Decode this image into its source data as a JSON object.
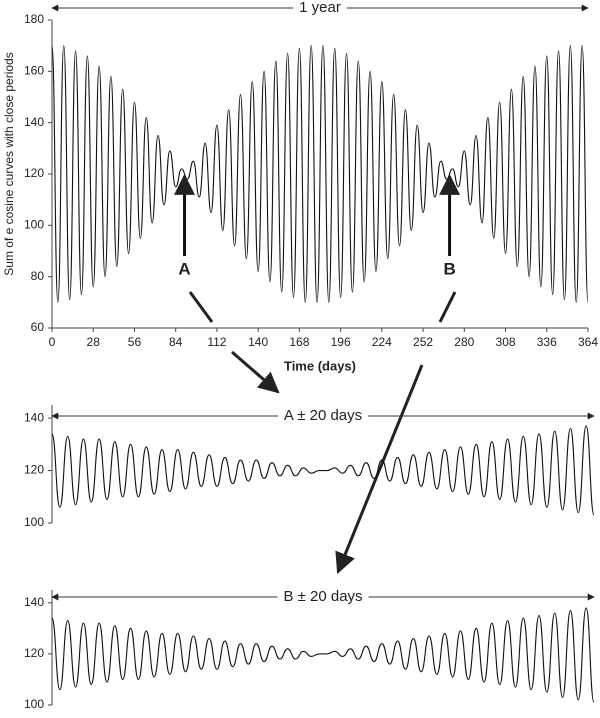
{
  "chart_data": [
    {
      "type": "line",
      "title": "1 year",
      "x_label": "Time (days)",
      "y_label": "Sum of e cosine curves with close periods",
      "color": "#111",
      "xlim": [
        0,
        364
      ],
      "xticks": [
        0,
        28,
        56,
        84,
        112,
        140,
        168,
        196,
        224,
        252,
        280,
        308,
        336,
        364
      ],
      "ylim": [
        60,
        180
      ],
      "yticks": [
        60,
        80,
        100,
        120,
        140,
        160,
        180
      ],
      "annotations": [
        {
          "text": "A",
          "x": 90,
          "y": 120
        },
        {
          "text": "B",
          "x": 270,
          "y": 120
        }
      ],
      "x": [
        0,
        4,
        8,
        12,
        16,
        20,
        24,
        28,
        32,
        36,
        40,
        44,
        48,
        52,
        56,
        60,
        64,
        68,
        72,
        76,
        80,
        84,
        88,
        92,
        96,
        100,
        104,
        108,
        112,
        116,
        120,
        124,
        128,
        132,
        136,
        140,
        144,
        148,
        152,
        156,
        160,
        164,
        168,
        172,
        176,
        180,
        184,
        188,
        192,
        196,
        200,
        204,
        208,
        212,
        216,
        220,
        224,
        228,
        232,
        236,
        240,
        244,
        248,
        252,
        256,
        260,
        264,
        268,
        272,
        276,
        280,
        284,
        288,
        292,
        296,
        300,
        304,
        308,
        312,
        316,
        320,
        324,
        328,
        332,
        336,
        340,
        344,
        348,
        352,
        356,
        360,
        364
      ],
      "values": [
        170,
        70,
        170,
        71,
        168,
        73,
        166,
        76,
        162,
        80,
        158,
        84,
        153,
        89,
        148,
        95,
        142,
        101,
        135,
        108,
        129,
        115,
        122,
        118,
        125,
        111,
        132,
        105,
        139,
        98,
        145,
        92,
        151,
        87,
        156,
        82,
        160,
        78,
        164,
        74,
        167,
        72,
        169,
        70,
        170,
        70,
        170,
        70,
        169,
        72,
        167,
        74,
        164,
        78,
        160,
        82,
        156,
        87,
        151,
        92,
        145,
        98,
        139,
        105,
        132,
        111,
        125,
        118,
        122,
        115,
        129,
        108,
        135,
        101,
        142,
        95,
        148,
        89,
        153,
        84,
        158,
        80,
        162,
        76,
        166,
        73,
        168,
        71,
        170,
        70,
        170,
        70
      ]
    },
    {
      "type": "line",
      "title": "A ± 20 days",
      "color": "#111",
      "ylim": [
        100,
        145
      ],
      "yticks": [
        100,
        120,
        140
      ],
      "values": [
        134,
        106,
        133,
        107,
        132,
        108,
        132,
        109,
        131,
        110,
        130,
        110,
        129,
        111,
        128,
        112,
        128,
        113,
        127,
        114,
        126,
        114,
        125,
        115,
        124,
        116,
        124,
        117,
        123,
        118,
        122,
        118,
        121,
        119,
        120,
        120,
        121,
        119,
        122,
        118,
        123,
        117,
        124,
        116,
        125,
        115,
        126,
        114,
        127,
        113,
        128,
        112,
        129,
        111,
        130,
        110,
        131,
        109,
        132,
        108,
        133,
        107,
        134,
        106,
        135,
        105,
        136,
        104,
        137,
        103
      ]
    },
    {
      "type": "line",
      "title": "B ± 20 days",
      "color": "#111",
      "ylim": [
        100,
        145
      ],
      "yticks": [
        100,
        120,
        140
      ],
      "values": [
        134,
        106,
        133,
        107,
        132,
        108,
        132,
        109,
        131,
        110,
        130,
        110,
        129,
        111,
        128,
        112,
        128,
        113,
        127,
        114,
        126,
        114,
        125,
        115,
        124,
        116,
        124,
        117,
        123,
        118,
        122,
        118,
        121,
        119,
        120,
        120,
        121,
        119,
        122,
        118,
        123,
        117,
        124,
        116,
        125,
        114,
        126,
        113,
        127,
        112,
        128,
        111,
        129,
        110,
        130,
        109,
        132,
        108,
        133,
        107,
        134,
        106,
        135,
        105,
        136,
        103,
        137,
        102,
        138,
        101
      ]
    }
  ]
}
